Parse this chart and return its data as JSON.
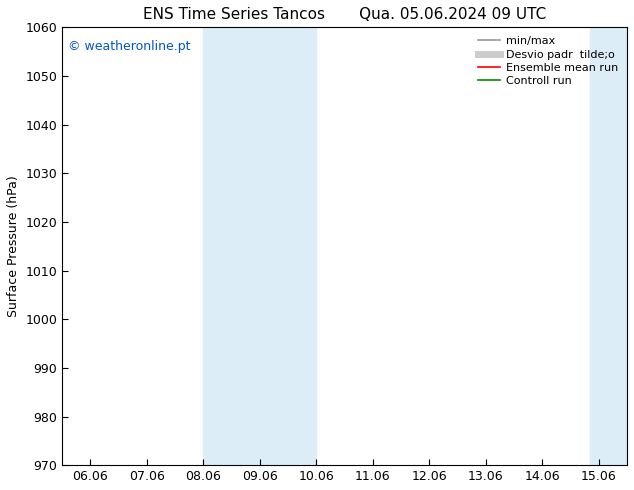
{
  "title_left": "ENS Time Series Tancos",
  "title_right": "Qua. 05.06.2024 09 UTC",
  "ylabel": "Surface Pressure (hPa)",
  "ylim": [
    970,
    1060
  ],
  "yticks": [
    970,
    980,
    990,
    1000,
    1010,
    1020,
    1030,
    1040,
    1050,
    1060
  ],
  "xtick_labels": [
    "06.06",
    "07.06",
    "08.06",
    "09.06",
    "10.06",
    "11.06",
    "12.06",
    "13.06",
    "14.06",
    "15.06"
  ],
  "xtick_positions": [
    0,
    1,
    2,
    3,
    4,
    5,
    6,
    7,
    8,
    9
  ],
  "xlim": [
    -0.5,
    9.5
  ],
  "shaded_regions": [
    {
      "xmin": 2.0,
      "xmax": 2.5,
      "color": "#ddedf8"
    },
    {
      "xmin": 2.5,
      "xmax": 4.0,
      "color": "#ddedf8"
    },
    {
      "xmin": 8.9,
      "xmax": 9.15,
      "color": "#ddedf8"
    },
    {
      "xmin": 9.15,
      "xmax": 9.5,
      "color": "#ddedf8"
    }
  ],
  "copyright_text": "© weatheronline.pt",
  "copyright_color": "#0055cc",
  "background_color": "#ffffff",
  "legend_entries": [
    {
      "label": "min/max",
      "color": "#999999",
      "lw": 1.2
    },
    {
      "label": "Desvio padr  tilde;o",
      "color": "#cccccc",
      "lw": 5
    },
    {
      "label": "Ensemble mean run",
      "color": "#ff0000",
      "lw": 1.2
    },
    {
      "label": "Controll run",
      "color": "#008800",
      "lw": 1.2
    }
  ],
  "spine_color": "#000000",
  "font_size": 9,
  "title_font_size": 11
}
